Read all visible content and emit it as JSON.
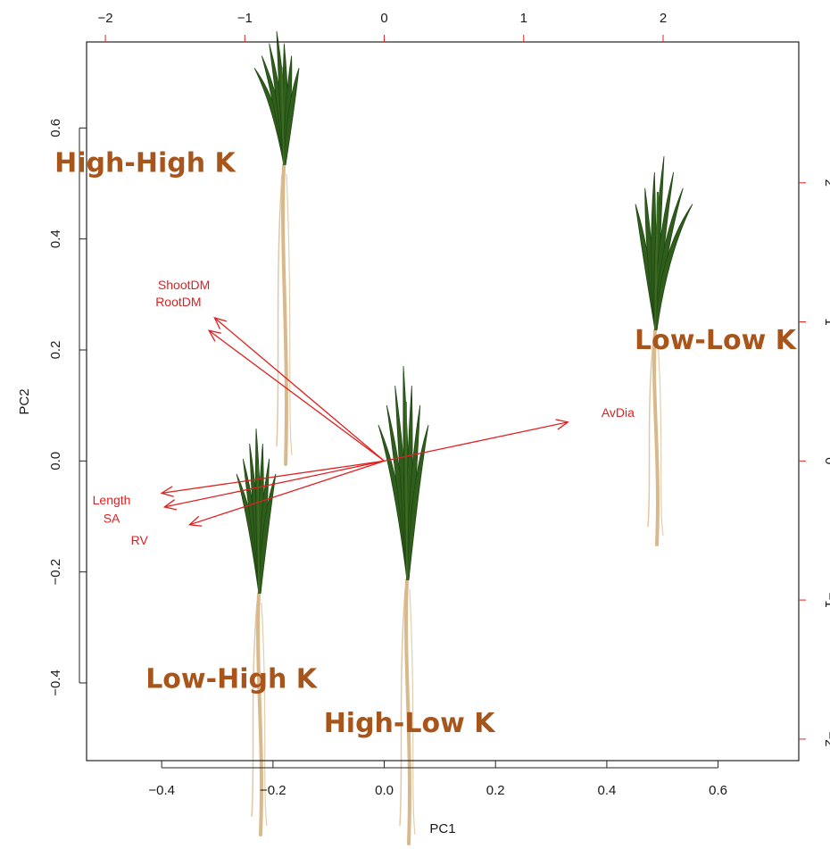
{
  "chart_data": {
    "type": "biplot",
    "xlabel": "PC1",
    "ylabel": "PC2",
    "xlim": [
      -0.535,
      0.745
    ],
    "ylim": [
      -0.54,
      0.755
    ],
    "x_ticks": [
      "-0.4",
      "-0.2",
      "0.0",
      "0.2",
      "0.4",
      "0.6"
    ],
    "x_tick_values": [
      -0.4,
      -0.2,
      0.0,
      0.2,
      0.4,
      0.6
    ],
    "y_ticks": [
      "-0.4",
      "-0.2",
      "0.0",
      "0.2",
      "0.4",
      "0.6"
    ],
    "y_tick_values": [
      -0.4,
      -0.2,
      0.0,
      0.2,
      0.4,
      0.6
    ],
    "top_axis_ticks": [
      "-2",
      "-1",
      "0",
      "1",
      "2"
    ],
    "top_axis_values": [
      -2,
      -1,
      0,
      1,
      2
    ],
    "top_axis_scale": 0.2506,
    "right_axis_ticks": [
      "2",
      "1",
      "0",
      "-1",
      "-2"
    ],
    "right_axis_values": [
      2,
      1,
      0,
      -1,
      -2
    ],
    "right_axis_scale": 0.2506,
    "loadings": [
      {
        "name": "ShootDM",
        "x": -0.305,
        "y": 0.258,
        "label_x": -0.36,
        "label_y": 0.315
      },
      {
        "name": "RootDM",
        "x": -0.315,
        "y": 0.235,
        "label_x": -0.37,
        "label_y": 0.285
      },
      {
        "name": "AvDia",
        "x": 0.33,
        "y": 0.07,
        "label_x": 0.42,
        "label_y": 0.085
      },
      {
        "name": "Length",
        "x": -0.4,
        "y": -0.058,
        "label_x": -0.49,
        "label_y": -0.072
      },
      {
        "name": "SA",
        "x": -0.395,
        "y": -0.083,
        "label_x": -0.49,
        "label_y": -0.105
      },
      {
        "name": "RV",
        "x": -0.35,
        "y": -0.115,
        "label_x": -0.44,
        "label_y": -0.145
      }
    ],
    "groups": [
      {
        "name": "High-High K",
        "x": -0.43,
        "y": 0.535
      },
      {
        "name": "Low-Low K",
        "x": 0.595,
        "y": 0.215
      },
      {
        "name": "Low-High K",
        "x": -0.275,
        "y": -0.395
      },
      {
        "name": "High-Low K",
        "x": 0.045,
        "y": -0.475
      }
    ],
    "arrow_color": "#e02020",
    "group_color": "#a8551c",
    "leaf_color": "#2f5e1c",
    "root_color": "#d9b98c"
  }
}
